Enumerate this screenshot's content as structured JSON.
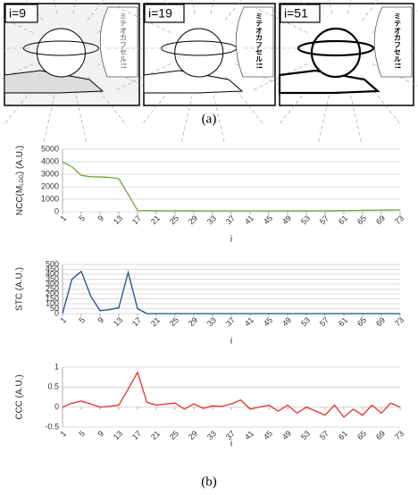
{
  "panels": [
    {
      "label": "i=9",
      "text": "ミテオカフセル!!"
    },
    {
      "label": "i=19",
      "text": "ミテオカフセル!!"
    },
    {
      "label": "i=51",
      "text": "ミテオカフセル!!"
    }
  ],
  "captions": [
    "(a)",
    "(b)"
  ],
  "chart_data": [
    {
      "type": "line",
      "ylabel": "NCC(M",
      "ylabel_sub": "LOG",
      "ylabel_end": ") (A.U.)",
      "xlabel": "i",
      "color": "#77a33c",
      "x": [
        1,
        3,
        5,
        7,
        9,
        11,
        13,
        15,
        17,
        19,
        21,
        23,
        25,
        27,
        29,
        31,
        33,
        35,
        37,
        39,
        41,
        43,
        45,
        47,
        49,
        51,
        53,
        55,
        57,
        59,
        61,
        63,
        65,
        67,
        69,
        71,
        73
      ],
      "values": [
        4000,
        3600,
        2900,
        2800,
        2780,
        2750,
        2650,
        1400,
        100,
        90,
        85,
        80,
        80,
        75,
        75,
        70,
        70,
        70,
        70,
        70,
        70,
        70,
        70,
        70,
        70,
        75,
        75,
        80,
        80,
        85,
        90,
        100,
        110,
        120,
        130,
        140,
        150
      ],
      "xlim": [
        1,
        73
      ],
      "xticks": [
        1,
        5,
        9,
        13,
        17,
        21,
        25,
        29,
        33,
        37,
        41,
        45,
        49,
        53,
        57,
        61,
        65,
        69,
        73
      ],
      "ylim": [
        0,
        5000
      ],
      "yticks": [
        0,
        1000,
        2000,
        3000,
        4000,
        5000
      ],
      "grid": true
    },
    {
      "type": "line",
      "ylabel": "STC (A.U.)",
      "xlabel": "i",
      "color": "#1f4e8c",
      "x": [
        1,
        3,
        5,
        7,
        9,
        11,
        13,
        15,
        17,
        19,
        21,
        23,
        25,
        27,
        29,
        31,
        33,
        35,
        37,
        39,
        41,
        43,
        45,
        47,
        49,
        51,
        53,
        55,
        57,
        59,
        61,
        63,
        65,
        67,
        69,
        71,
        73
      ],
      "values": [
        0,
        350,
        430,
        180,
        30,
        40,
        60,
        420,
        50,
        0,
        0,
        0,
        0,
        0,
        0,
        0,
        0,
        0,
        0,
        0,
        0,
        0,
        0,
        0,
        0,
        0,
        0,
        0,
        0,
        0,
        0,
        0,
        0,
        0,
        0,
        0,
        0
      ],
      "xlim": [
        1,
        73
      ],
      "xticks": [
        1,
        5,
        9,
        13,
        17,
        21,
        25,
        29,
        33,
        37,
        41,
        45,
        49,
        53,
        57,
        61,
        65,
        69,
        73
      ],
      "ylim": [
        0,
        500
      ],
      "yticks": [
        0,
        50,
        100,
        150,
        200,
        250,
        300,
        350,
        400,
        450,
        500
      ],
      "grid": true
    },
    {
      "type": "line",
      "ylabel": "CCC (A.U.)",
      "xlabel": "i",
      "color": "#e8302a",
      "x": [
        1,
        3,
        5,
        7,
        9,
        11,
        13,
        15,
        17,
        19,
        21,
        23,
        25,
        27,
        29,
        31,
        33,
        35,
        37,
        39,
        41,
        43,
        45,
        47,
        49,
        51,
        53,
        55,
        57,
        59,
        61,
        63,
        65,
        67,
        69,
        71,
        73
      ],
      "values": [
        0,
        0.1,
        0.15,
        0.08,
        0,
        0.02,
        0.05,
        0.45,
        0.87,
        0.12,
        0.05,
        0.08,
        0.1,
        -0.05,
        0.08,
        -0.03,
        0.03,
        0.02,
        0.08,
        0.18,
        -0.05,
        0,
        0.05,
        -0.1,
        0.05,
        -0.15,
        0,
        -0.1,
        -0.2,
        0.05,
        -0.25,
        -0.05,
        -0.2,
        0.05,
        -0.15,
        0.1,
        0
      ],
      "xlim": [
        1,
        73
      ],
      "xticks": [
        1,
        5,
        9,
        13,
        17,
        21,
        25,
        29,
        33,
        37,
        41,
        45,
        49,
        53,
        57,
        61,
        65,
        69,
        73
      ],
      "ylim": [
        -0.5,
        1
      ],
      "yticks": [
        -0.5,
        0,
        0.5,
        1
      ],
      "grid": true
    }
  ]
}
